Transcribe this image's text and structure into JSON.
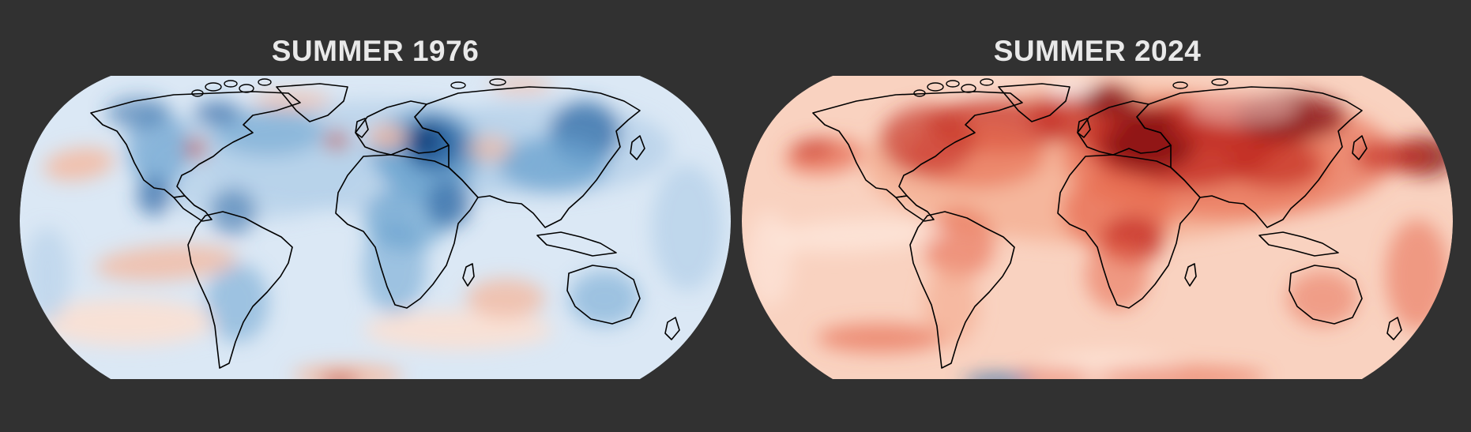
{
  "panels": [
    {
      "title": "SUMMER 1976",
      "palette": "blue",
      "colors": {
        "ocean": "#dbe8f5",
        "light": "#b8d2ea",
        "mid": "#6aa2cf",
        "dark": "#2f6aa6",
        "deep": "#0e3d78",
        "warm": "#f4b9a0",
        "warmLight": "#fbe0d3",
        "hot": "#c43a2e"
      }
    },
    {
      "title": "SUMMER 2024",
      "palette": "red",
      "colors": {
        "ocean": "#f9d2c0",
        "light": "#f4a98c",
        "mid": "#e76a4f",
        "dark": "#c32e24",
        "deep": "#7d0d12",
        "warm": "#fde8dd",
        "warmLight": "#ffffff",
        "hot": "#2f6aa6"
      }
    }
  ]
}
